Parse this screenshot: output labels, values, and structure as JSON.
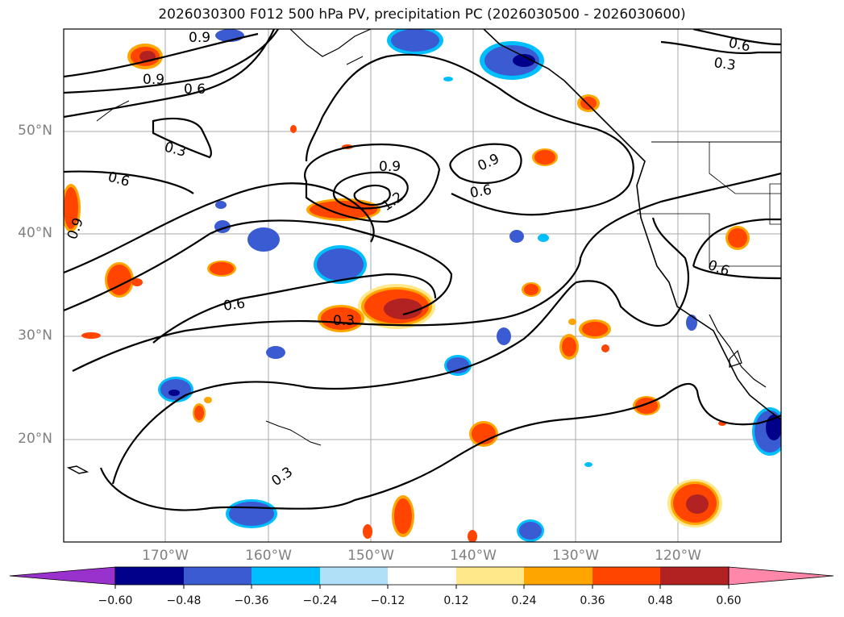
{
  "title": "2026030300 F012 500 hPa PV, precipitation PC (2026030500 - 2026030600)",
  "lat_labels": [
    "50°N",
    "40°N",
    "30°N",
    "20°N"
  ],
  "lon_labels": [
    "170°W",
    "160°W",
    "150°W",
    "140°W",
    "130°W",
    "120°W"
  ],
  "contour_labels": [
    "0.9",
    "0.9",
    "0.6",
    "0.3",
    "0.6",
    "0.9",
    "0.9",
    "1.2",
    "0.6",
    "0.9",
    "0.6",
    "0.3",
    "0.3",
    "0.6",
    "0.3",
    "0.6"
  ],
  "colorbar": {
    "ticks": [
      "−0.60",
      "−0.48",
      "−0.36",
      "−0.24",
      "−0.12",
      "0.12",
      "0.24",
      "0.36",
      "0.48",
      "0.60"
    ],
    "colors": [
      "#9932cc",
      "#00008b",
      "#3a5bd1",
      "#00bfff",
      "#b0e0f8",
      "#ffffff",
      "#ffe88a",
      "#ffa500",
      "#ff4500",
      "#b22222",
      "#ff88aa"
    ]
  },
  "chart_data": {
    "type": "map",
    "title": "2026030300 F012 500 hPa PV, precipitation PC (2026030500 - 2026030600)",
    "fields": [
      "500 hPa PV contours",
      "precipitation PC shading"
    ],
    "contour_levels": [
      0.3,
      0.6,
      0.9,
      1.2
    ],
    "colorbar_levels": [
      -0.6,
      -0.48,
      -0.36,
      -0.24,
      -0.12,
      0.12,
      0.24,
      0.36,
      0.48,
      0.6
    ],
    "lat_ticks": [
      50,
      40,
      30,
      20
    ],
    "lon_ticks": [
      -170,
      -160,
      -150,
      -140,
      -130,
      -120
    ]
  }
}
